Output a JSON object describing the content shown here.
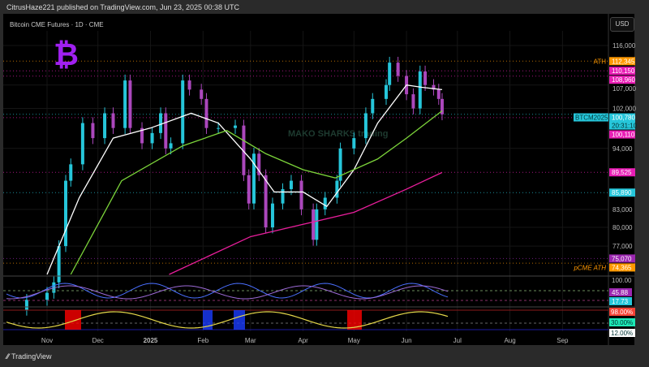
{
  "header": {
    "publisher": "CitrusHaze221 published on TradingView.com, Jun 23, 2025 00:38 UTC",
    "symbol": "Bitcoin CME Futures · 1D · CME",
    "currency": "USD"
  },
  "footer": {
    "brand": "TradingView"
  },
  "watermark": "MAKO SHARKS trading",
  "colors": {
    "up": "#26c6da",
    "down": "#ab47bc",
    "ma_fast": "#ffffff",
    "ma_mid": "#7cd43a",
    "ma_slow": "#e91e9c",
    "ath": "#ff9800",
    "level": "#e91eb5"
  },
  "chart_data": {
    "type": "candlestick",
    "yscale": "log",
    "ylim": [
      66000,
      121000
    ],
    "yticks": [
      "116,000",
      "107,000",
      "102,000",
      "94,000",
      "83,000",
      "80,000",
      "77,000"
    ],
    "xticks": [
      {
        "label": "Nov",
        "date": "2024-11-01"
      },
      {
        "label": "Dec",
        "date": "2024-12-01"
      },
      {
        "label": "2025",
        "date": "2025-01-01"
      },
      {
        "label": "Feb",
        "date": "2025-02-01"
      },
      {
        "label": "Mar",
        "date": "2025-03-01"
      },
      {
        "label": "Apr",
        "date": "2025-04-01"
      },
      {
        "label": "May",
        "date": "2025-05-01"
      },
      {
        "label": "Jun",
        "date": "2025-06-01"
      },
      {
        "label": "Jul",
        "date": "2025-07-01"
      },
      {
        "label": "Aug",
        "date": "2025-08-01"
      },
      {
        "label": "Sep",
        "date": "2025-09-01"
      }
    ],
    "closes": [
      [
        "2024-10-20",
        69000
      ],
      [
        "2024-11-01",
        70000
      ],
      [
        "2024-11-05",
        71500
      ],
      [
        "2024-11-08",
        77000
      ],
      [
        "2024-11-12",
        88000
      ],
      [
        "2024-11-15",
        91000
      ],
      [
        "2024-11-22",
        99000
      ],
      [
        "2024-11-28",
        96000
      ],
      [
        "2024-12-05",
        101000
      ],
      [
        "2024-12-10",
        98000
      ],
      [
        "2024-12-17",
        108000
      ],
      [
        "2024-12-20",
        98000
      ],
      [
        "2024-12-27",
        95000
      ],
      [
        "2025-01-02",
        97000
      ],
      [
        "2025-01-07",
        101000
      ],
      [
        "2025-01-10",
        94000
      ],
      [
        "2025-01-13",
        95000
      ],
      [
        "2025-01-20",
        108000
      ],
      [
        "2025-01-24",
        106000
      ],
      [
        "2025-01-31",
        104000
      ],
      [
        "2025-02-03",
        98000
      ],
      [
        "2025-02-10",
        98000
      ],
      [
        "2025-02-20",
        98500
      ],
      [
        "2025-02-25",
        89000
      ],
      [
        "2025-02-28",
        84000
      ],
      [
        "2025-03-03",
        93000
      ],
      [
        "2025-03-06",
        89000
      ],
      [
        "2025-03-10",
        80000
      ],
      [
        "2025-03-14",
        84000
      ],
      [
        "2025-03-20",
        86500
      ],
      [
        "2025-03-25",
        88000
      ],
      [
        "2025-03-31",
        83000
      ],
      [
        "2025-04-07",
        78000
      ],
      [
        "2025-04-09",
        83000
      ],
      [
        "2025-04-14",
        85000
      ],
      [
        "2025-04-21",
        88000
      ],
      [
        "2025-04-23",
        94000
      ],
      [
        "2025-05-01",
        96000
      ],
      [
        "2025-05-08",
        101000
      ],
      [
        "2025-05-12",
        104000
      ],
      [
        "2025-05-20",
        107000
      ],
      [
        "2025-05-22",
        112000
      ],
      [
        "2025-05-27",
        109000
      ],
      [
        "2025-06-01",
        105000
      ],
      [
        "2025-06-05",
        102000
      ],
      [
        "2025-06-09",
        110000
      ],
      [
        "2025-06-12",
        107000
      ],
      [
        "2025-06-17",
        106000
      ],
      [
        "2025-06-20",
        104000
      ],
      [
        "2025-06-22",
        100780
      ]
    ],
    "ma_fast": [
      [
        "2024-11-01",
        62000
      ],
      [
        "2024-11-20",
        85000
      ],
      [
        "2024-12-10",
        96000
      ],
      [
        "2025-01-01",
        98000
      ],
      [
        "2025-01-25",
        101000
      ],
      [
        "2025-02-10",
        99000
      ],
      [
        "2025-03-01",
        92000
      ],
      [
        "2025-03-15",
        86000
      ],
      [
        "2025-04-01",
        86000
      ],
      [
        "2025-04-15",
        83500
      ],
      [
        "2025-05-01",
        90000
      ],
      [
        "2025-05-15",
        99000
      ],
      [
        "2025-06-01",
        107000
      ],
      [
        "2025-06-10",
        106500
      ],
      [
        "2025-06-22",
        106000
      ]
    ],
    "ma_mid": [
      [
        "2024-11-15",
        66000
      ],
      [
        "2024-12-15",
        88000
      ],
      [
        "2025-01-20",
        94500
      ],
      [
        "2025-02-15",
        97500
      ],
      [
        "2025-03-10",
        93000
      ],
      [
        "2025-04-01",
        90000
      ],
      [
        "2025-04-20",
        88500
      ],
      [
        "2025-05-15",
        92000
      ],
      [
        "2025-06-01",
        96000
      ],
      [
        "2025-06-22",
        101500
      ]
    ],
    "ma_slow": [
      [
        "2025-01-12",
        66500
      ],
      [
        "2025-03-01",
        78500
      ],
      [
        "2025-04-01",
        80500
      ],
      [
        "2025-05-01",
        82500
      ],
      [
        "2025-06-01",
        86500
      ],
      [
        "2025-06-22",
        89500
      ]
    ],
    "levels": [
      {
        "value": 112345,
        "label": "112,345",
        "tag": "ATH",
        "color": "#ff9800"
      },
      {
        "value": 110150,
        "label": "110,150",
        "color": "#e91eb5"
      },
      {
        "value": 108960,
        "label": "108,960",
        "color": "#e91eb5"
      },
      {
        "value": 100780,
        "label": "100,780",
        "sub": "20:31:10",
        "tag": "BTCM2025",
        "color": "#26c6da"
      },
      {
        "value": 100110,
        "label": "100,110",
        "color": "#e91eb5"
      },
      {
        "value": 89525,
        "label": "89,525",
        "color": "#e91eb5"
      },
      {
        "value": 85890,
        "label": "85,890",
        "color": "#26c6da"
      },
      {
        "value": 75070,
        "label": "75,070",
        "color": "#9c27b0"
      },
      {
        "value": 74365,
        "label": "74,365",
        "tag": "pCME ATH",
        "color": "#ff9800"
      }
    ],
    "osc1": {
      "top_label": "100.00",
      "values": [
        {
          "label": "45.88",
          "color": "#9c27b0"
        },
        {
          "label": "17.73",
          "color": "#26c6da"
        }
      ]
    },
    "osc2": {
      "values": [
        {
          "label": "98.00%",
          "color": "#f44336"
        },
        {
          "label": "30.00%",
          "color": "#1de9b6"
        },
        {
          "label": "12.00%",
          "color": "#ffffff"
        }
      ]
    }
  }
}
